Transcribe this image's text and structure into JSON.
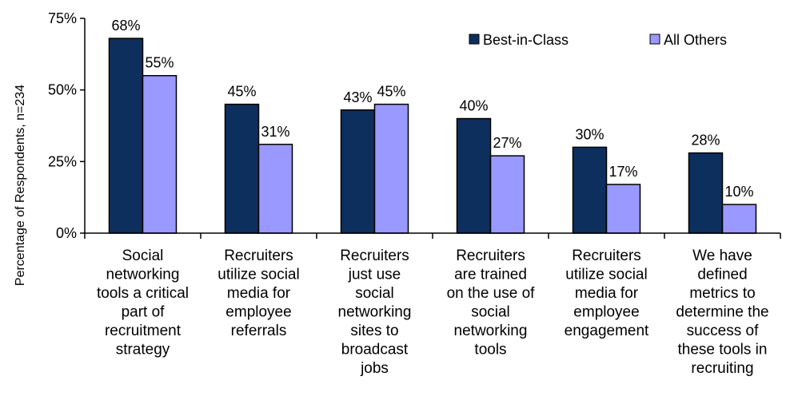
{
  "chart_data": {
    "type": "bar",
    "categories": [
      [
        "Social",
        "networking",
        "tools a critical",
        "part of",
        "recruitment",
        "strategy"
      ],
      [
        "Recruiters",
        "utilize social",
        "media for",
        "employee",
        "referrals"
      ],
      [
        "Recruiters",
        "just use",
        "social",
        "networking",
        "sites to",
        "broadcast",
        "jobs"
      ],
      [
        "Recruiters",
        "are trained",
        "on the use of",
        "social",
        "networking",
        "tools"
      ],
      [
        "Recruiters",
        "utilize social",
        "media for",
        "employee",
        "engagement"
      ],
      [
        "We have",
        "defined",
        "metrics to",
        "determine the",
        "success of",
        "these tools in",
        "recruiting"
      ]
    ],
    "series": [
      {
        "name": "Best-in-Class",
        "values": [
          68,
          45,
          43,
          40,
          30,
          28
        ],
        "labels": [
          "68%",
          "45%",
          "43%",
          "40%",
          "30%",
          "28%"
        ],
        "color": "#0d2f5e"
      },
      {
        "name": "All Others",
        "values": [
          55,
          31,
          45,
          27,
          17,
          10
        ],
        "labels": [
          "55%",
          "31%",
          "45%",
          "27%",
          "17%",
          "10%"
        ],
        "color": "#9999ff"
      }
    ],
    "ylabel": "Percentage  of Respondents,  n=234",
    "yticks": [
      0,
      25,
      50,
      75
    ],
    "ytick_labels": [
      "0%",
      "25%",
      "50%",
      "75%"
    ],
    "ylim": [
      0,
      75
    ],
    "grid": false,
    "legend_position": "top-right"
  }
}
